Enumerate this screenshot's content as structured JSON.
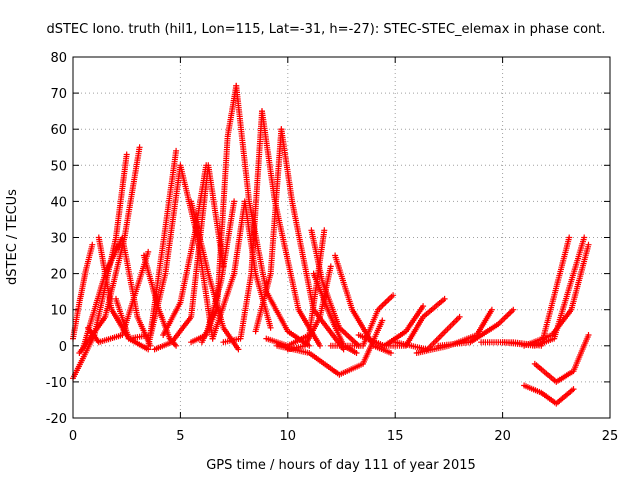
{
  "chart_data": {
    "type": "scatter",
    "title": "dSTEC Iono. truth (hil1, Lon=115, Lat=-31, h=-27): STEC-STEC_elemax in phase cont.",
    "xlabel": "GPS time / hours of day 111 of year 2015",
    "ylabel": "dSTEC  / TECUs",
    "xlim": [
      0,
      25
    ],
    "ylim": [
      -20,
      80
    ],
    "xticks": [
      0,
      5,
      10,
      15,
      20,
      25
    ],
    "yticks": [
      -20,
      -10,
      0,
      10,
      20,
      30,
      40,
      50,
      60,
      70,
      80
    ],
    "grid": true,
    "marker": "+",
    "color": "#ff0000",
    "series": [
      {
        "x": [
          0.0,
          0.3,
          0.6,
          0.9
        ],
        "y": [
          2,
          12,
          21,
          28
        ]
      },
      {
        "x": [
          0.0,
          1.0,
          2.0,
          2.5
        ],
        "y": [
          -9,
          3,
          30,
          53
        ]
      },
      {
        "x": [
          0.3,
          1.5,
          2.4,
          3.1
        ],
        "y": [
          -2,
          8,
          30,
          55
        ]
      },
      {
        "x": [
          0.5,
          1.5,
          2.3,
          3.0,
          3.6
        ],
        "y": [
          0,
          20,
          30,
          8,
          0
        ]
      },
      {
        "x": [
          0.7,
          1.2,
          2.3,
          3.5
        ],
        "y": [
          5,
          1,
          3,
          26
        ]
      },
      {
        "x": [
          1.2,
          1.8,
          2.6,
          3.5
        ],
        "y": [
          30,
          10,
          2,
          -1
        ]
      },
      {
        "x": [
          2.0,
          2.6,
          3.6,
          4.8
        ],
        "y": [
          13,
          2,
          3,
          54
        ]
      },
      {
        "x": [
          3.3,
          4.0,
          4.5,
          4.8
        ],
        "y": [
          25,
          10,
          2,
          0
        ]
      },
      {
        "x": [
          3.5,
          4.3,
          5.0,
          5.8,
          6.5
        ],
        "y": [
          0,
          20,
          50,
          30,
          2
        ]
      },
      {
        "x": [
          3.8,
          4.6,
          5.5,
          6.3,
          7.0
        ],
        "y": [
          -1,
          1,
          8,
          50,
          22
        ]
      },
      {
        "x": [
          4.2,
          5.0,
          5.7,
          6.2
        ],
        "y": [
          3,
          12,
          32,
          50
        ]
      },
      {
        "x": [
          5.5,
          6.3,
          7.0,
          7.7
        ],
        "y": [
          40,
          20,
          5,
          -1
        ]
      },
      {
        "x": [
          5.5,
          6.2,
          6.9,
          7.5
        ],
        "y": [
          1,
          3,
          18,
          40
        ]
      },
      {
        "x": [
          6.0,
          6.7,
          7.2,
          7.6
        ],
        "y": [
          1,
          10,
          58,
          72
        ]
      },
      {
        "x": [
          7.6,
          8.2,
          9.0,
          10.0,
          11.0
        ],
        "y": [
          72,
          40,
          15,
          4,
          0
        ]
      },
      {
        "x": [
          6.5,
          7.5,
          8.0,
          8.5,
          9.2
        ],
        "y": [
          2,
          20,
          40,
          20,
          5
        ]
      },
      {
        "x": [
          7.0,
          7.8,
          8.3,
          8.8
        ],
        "y": [
          1,
          2,
          20,
          65
        ]
      },
      {
        "x": [
          8.8,
          9.4,
          10.5,
          11.5
        ],
        "y": [
          65,
          40,
          10,
          0
        ]
      },
      {
        "x": [
          8.5,
          9.2,
          9.7
        ],
        "y": [
          4,
          20,
          60
        ]
      },
      {
        "x": [
          9.7,
          10.2,
          11.2,
          12.6
        ],
        "y": [
          60,
          40,
          10,
          -1
        ]
      },
      {
        "x": [
          9.0,
          10.0,
          11.0,
          11.7
        ],
        "y": [
          2,
          0,
          3,
          32
        ]
      },
      {
        "x": [
          11.1,
          11.6,
          12.4,
          13.3
        ],
        "y": [
          32,
          18,
          5,
          0
        ]
      },
      {
        "x": [
          10.0,
          10.8,
          11.5,
          12.0
        ],
        "y": [
          -1,
          0,
          8,
          22
        ]
      },
      {
        "x": [
          11.2,
          12.0,
          12.6,
          13.2
        ],
        "y": [
          20,
          8,
          0,
          -2
        ]
      },
      {
        "x": [
          9.5,
          11.0,
          12.4,
          13.5,
          14.4
        ],
        "y": [
          0,
          -2,
          -8,
          -5,
          7
        ]
      },
      {
        "x": [
          12.2,
          13.0,
          14.0,
          14.8
        ],
        "y": [
          25,
          10,
          0,
          -2
        ]
      },
      {
        "x": [
          12.0,
          13.5,
          14.2,
          14.9
        ],
        "y": [
          0,
          0,
          10,
          14
        ]
      },
      {
        "x": [
          13.3,
          14.5,
          15.5,
          16.3
        ],
        "y": [
          3,
          0,
          4,
          11
        ]
      },
      {
        "x": [
          14.5,
          15.5,
          16.3,
          17.3
        ],
        "y": [
          0,
          0,
          8,
          13
        ]
      },
      {
        "x": [
          15.0,
          16.5,
          17.5,
          18.0
        ],
        "y": [
          1,
          -1,
          5,
          8
        ]
      },
      {
        "x": [
          16.0,
          17.5,
          18.8,
          19.5
        ],
        "y": [
          -2,
          0,
          3,
          10
        ]
      },
      {
        "x": [
          17.0,
          18.5,
          19.8,
          20.5
        ],
        "y": [
          0,
          1,
          6,
          10
        ]
      },
      {
        "x": [
          19.0,
          20.5,
          21.8,
          23.1
        ],
        "y": [
          1,
          1,
          0,
          30
        ]
      },
      {
        "x": [
          20.0,
          21.5,
          22.4,
          23.8
        ],
        "y": [
          1,
          0,
          2,
          30
        ]
      },
      {
        "x": [
          21.0,
          22.3,
          23.2,
          24.0
        ],
        "y": [
          0,
          3,
          10,
          28
        ]
      },
      {
        "x": [
          21.0,
          21.8,
          22.5,
          23.3
        ],
        "y": [
          -11,
          -13,
          -16,
          -12
        ]
      },
      {
        "x": [
          21.5,
          22.5,
          23.3,
          24.0
        ],
        "y": [
          -5,
          -10,
          -7,
          3
        ]
      }
    ]
  }
}
